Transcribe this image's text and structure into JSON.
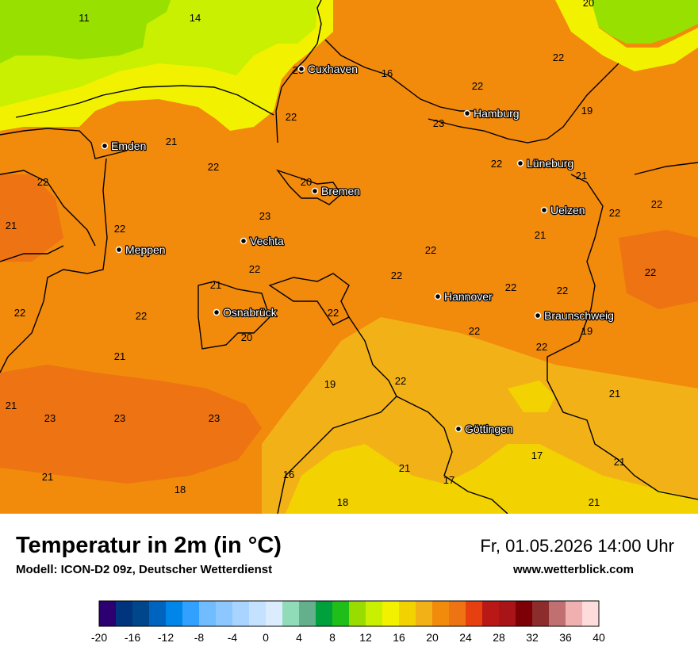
{
  "header": {
    "title": "Temperatur in 2m (in °C)",
    "subtitle": "Modell: ICON-D2 09z, Deutscher Wetterdienst",
    "datetime": "Fr, 01.05.2026 14:00 Uhr",
    "website": "www.wetterblick.com"
  },
  "colors": {
    "land_main": "#f28a0c",
    "land_dark": "#ee7312",
    "land_light": "#f2b217",
    "sea_yellow": "#f2f200",
    "sea_yellowgreen": "#c8f000",
    "sea_green": "#98e000",
    "border": "#000000"
  },
  "cities": [
    {
      "name": "Cuxhaven"
    },
    {
      "name": "Hamburg"
    },
    {
      "name": "Emden"
    },
    {
      "name": "Lüneburg"
    },
    {
      "name": "Bremen"
    },
    {
      "name": "Uelzen"
    },
    {
      "name": "Vechta"
    },
    {
      "name": "Meppen"
    },
    {
      "name": "Hannover"
    },
    {
      "name": "Osnabrück"
    },
    {
      "name": "Braunschweig"
    },
    {
      "name": "Göttingen"
    }
  ],
  "temperature_labels": [
    "11",
    "14",
    "20",
    "23",
    "16",
    "22",
    "22",
    "19",
    "23",
    "22",
    "21",
    "22",
    "22",
    "21",
    "22",
    "20",
    "21",
    "23",
    "22",
    "22",
    "22",
    "21",
    "22",
    "22",
    "22",
    "22",
    "22",
    "22",
    "21",
    "22",
    "22",
    "22",
    "22",
    "19",
    "20",
    "21",
    "22",
    "19",
    "22",
    "21",
    "23",
    "23",
    "23",
    "21",
    "17",
    "21",
    "16",
    "21",
    "17",
    "18",
    "18",
    "21",
    "21"
  ],
  "scale": {
    "colors": [
      "#2c0070",
      "#00347c",
      "#00468a",
      "#0064be",
      "#0086e8",
      "#32a0ff",
      "#70bcff",
      "#8cc8ff",
      "#a8d4ff",
      "#c4e2ff",
      "#dcecff",
      "#90dcb8",
      "#64b08c",
      "#00a03c",
      "#20be18",
      "#98dc00",
      "#c8f000",
      "#f2f200",
      "#f2d200",
      "#f2b217",
      "#f28a0c",
      "#ee7312",
      "#e64010",
      "#b81816",
      "#a81418",
      "#7c0006",
      "#8c2c2c",
      "#c07070",
      "#f0b0b0",
      "#ffdcdc"
    ],
    "ticks": [
      "-20",
      "-16",
      "-12",
      "-8",
      "-4",
      "0",
      "4",
      "8",
      "12",
      "16",
      "20",
      "24",
      "28",
      "32",
      "36",
      "40"
    ]
  }
}
